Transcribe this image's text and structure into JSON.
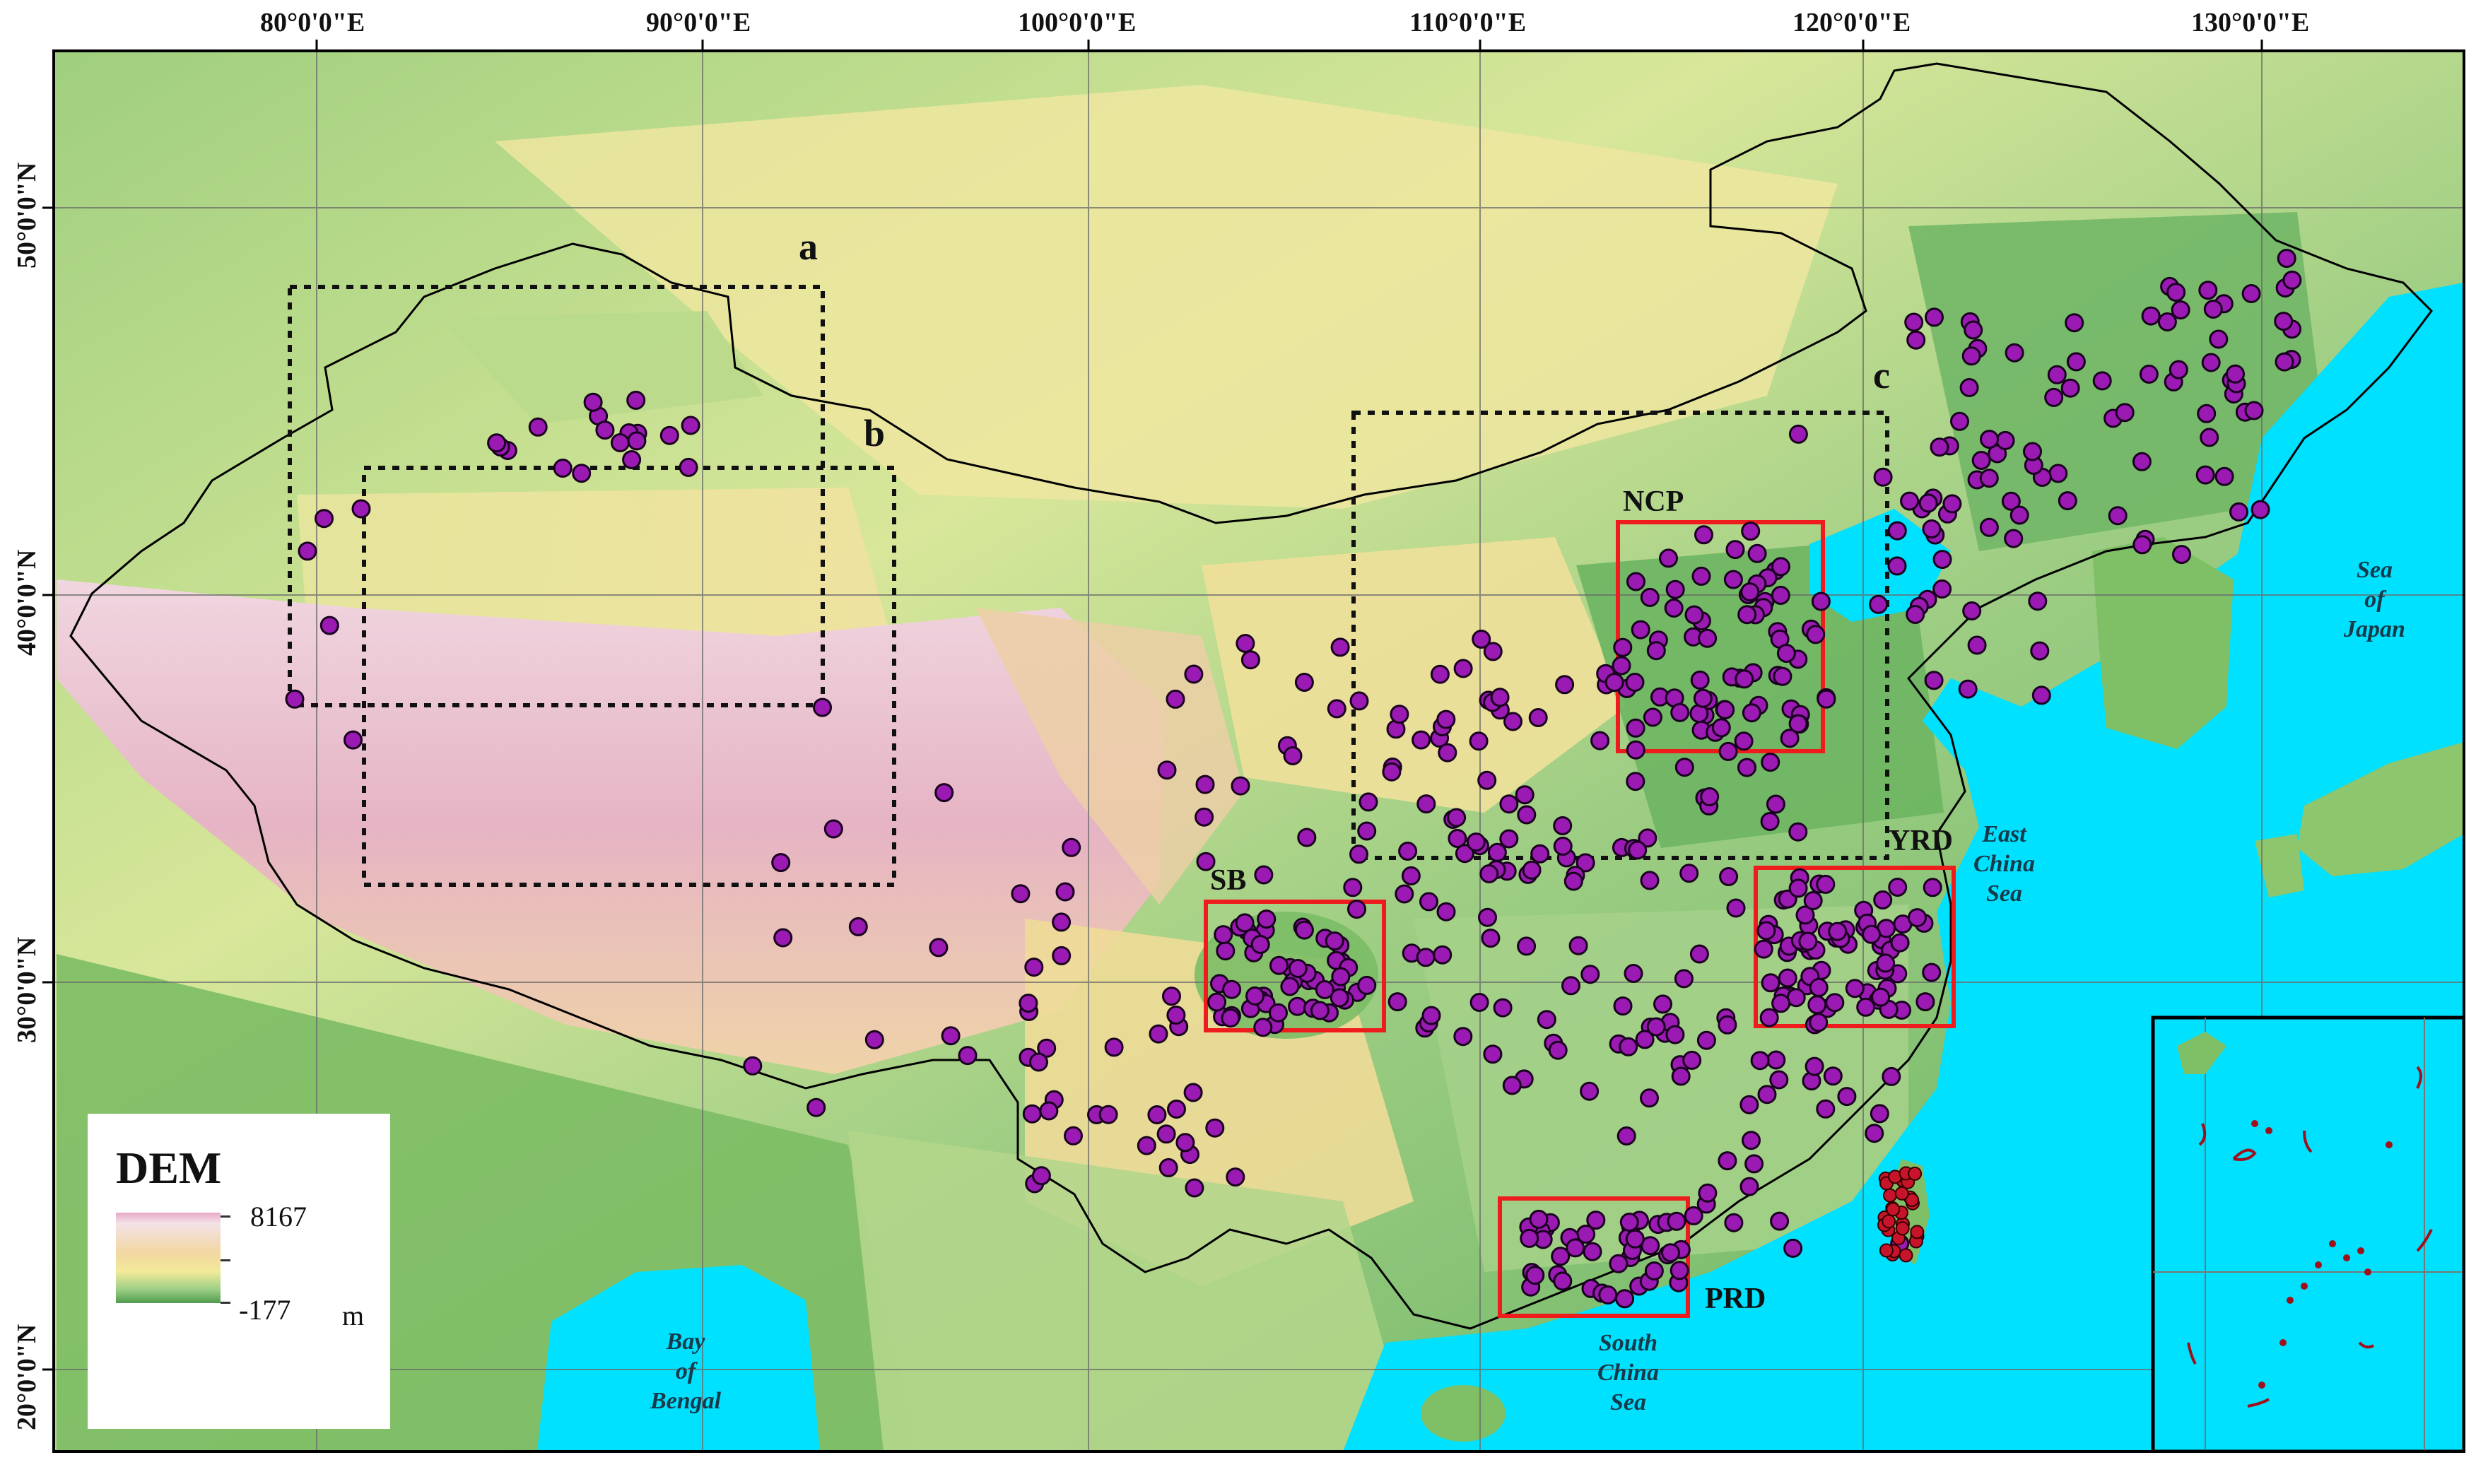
{
  "map": {
    "longitude_labels": [
      "80°0'0\"E",
      "90°0'0\"E",
      "100°0'0\"E",
      "110°0'0\"E",
      "120°0'0\"E",
      "130°0'0\"E"
    ],
    "latitude_labels": [
      "50°0'0\"N",
      "40°0'0\"N",
      "30°0'0\"N",
      "20°0'0\"N"
    ],
    "study_area_labels": [
      "a",
      "b",
      "c"
    ],
    "region_labels": [
      "NCP",
      "YRD",
      "SB",
      "PRD"
    ],
    "water_bodies": {
      "bay_of_bengal": "Bay\nof\nBengal",
      "south_china_sea": "South\nChina\nSea",
      "east_china_sea": "East\nChina\nSea",
      "sea_of_japan": "Sea\nof\nJapan"
    },
    "colors": {
      "ocean": "#00e0ff",
      "station_fill": "#9b1ab3",
      "station_edge": "#1a0020",
      "taiwan_station_fill": "#c8142a",
      "region_box": "#ee1c1c",
      "study_box": "#111111",
      "border": "#000000"
    }
  },
  "legend": {
    "title": "DEM",
    "max_value": "8167",
    "min_value": "-177",
    "unit": "m"
  }
}
